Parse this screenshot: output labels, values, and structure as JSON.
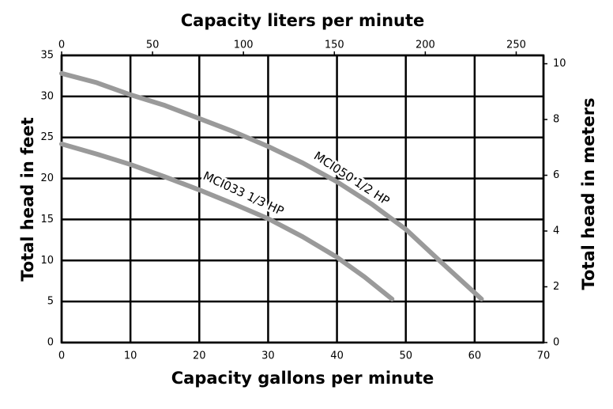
{
  "chart_data": {
    "type": "line",
    "title_top": "Capacity liters per minute",
    "xlabel": "Capacity gallons per minute",
    "ylabel": "Total head in feet",
    "y2label": "Total head in meters",
    "xlim": [
      0,
      70
    ],
    "xticks": [
      0,
      10,
      20,
      30,
      40,
      50,
      60,
      70
    ],
    "ylim": [
      0,
      35
    ],
    "yticks": [
      0,
      5,
      10,
      15,
      20,
      25,
      30,
      35
    ],
    "x2lim": [
      0,
      265
    ],
    "x2ticks": [
      0,
      50,
      100,
      150,
      200,
      250
    ],
    "y2lim": [
      0,
      10.3
    ],
    "y2ticks": [
      0,
      2,
      4,
      6,
      8,
      10
    ],
    "grid": true,
    "series": [
      {
        "name": "MCI050 1/2 HP",
        "color": "#9a9a9a",
        "x": [
          0,
          5,
          10,
          15,
          20,
          25,
          30,
          35,
          40,
          45,
          50,
          55,
          61
        ],
        "values": [
          32.8,
          31.7,
          30.2,
          28.9,
          27.3,
          25.7,
          23.9,
          21.9,
          19.6,
          16.9,
          13.8,
          9.9,
          5.3
        ]
      },
      {
        "name": "MCI033 1/3 HP",
        "color": "#9a9a9a",
        "x": [
          0,
          5,
          10,
          15,
          20,
          25,
          30,
          35,
          40,
          44,
          48
        ],
        "values": [
          24.2,
          23.0,
          21.7,
          20.2,
          18.6,
          16.9,
          15.1,
          12.9,
          10.4,
          8.0,
          5.3
        ]
      }
    ]
  }
}
